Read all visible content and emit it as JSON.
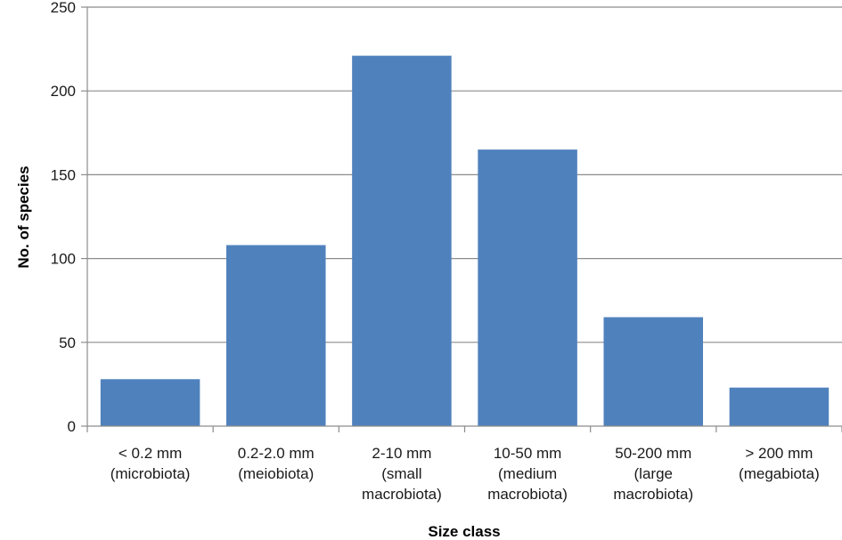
{
  "chart_data": {
    "type": "bar",
    "categories": [
      [
        "< 0.2 mm",
        "(microbiota)"
      ],
      [
        "0.2-2.0 mm",
        "(meiobiota)"
      ],
      [
        "2-10 mm",
        "(small",
        "macrobiota)"
      ],
      [
        "10-50 mm",
        "(medium",
        "macrobiota)"
      ],
      [
        "50-200 mm",
        "(large",
        "macrobiota)"
      ],
      [
        "> 200 mm",
        "(megabiota)"
      ]
    ],
    "values": [
      28,
      108,
      221,
      165,
      65,
      23
    ],
    "xlabel": "Size class",
    "ylabel": "No. of species",
    "ylim": [
      0,
      250
    ],
    "yticks": [
      0,
      50,
      100,
      150,
      200,
      250
    ],
    "grid": true,
    "bar_color": "#4F81BD",
    "grid_color": "#8c8c8c",
    "axis_color": "#8c8c8c"
  }
}
